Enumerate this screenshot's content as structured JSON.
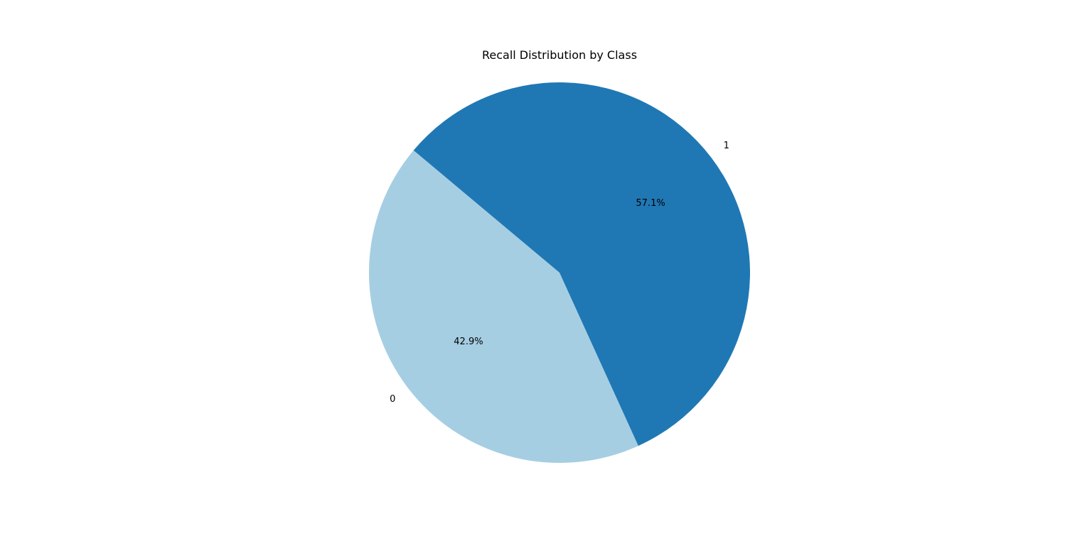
{
  "chart_data": {
    "type": "pie",
    "title": "Recall Distribution by Class",
    "labels": [
      "0",
      "1"
    ],
    "values": [
      42.9,
      57.1
    ],
    "percent_labels": [
      "42.9%",
      "57.1%"
    ],
    "colors": [
      "#a6cee3",
      "#1f78b4"
    ],
    "start_angle_deg": 140,
    "direction": "counterclockwise",
    "legend": "none"
  }
}
